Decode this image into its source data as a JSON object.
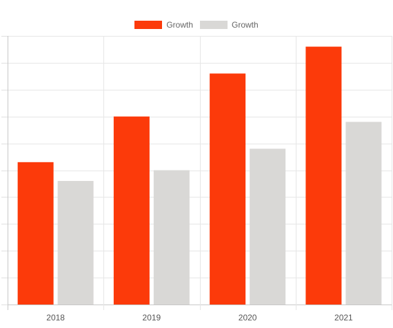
{
  "chart_data": {
    "type": "bar",
    "title": "",
    "xlabel": "",
    "ylabel": "",
    "categories": [
      "2018",
      "2019",
      "2020",
      "2021"
    ],
    "series": [
      {
        "name": "Growth",
        "color": "#fc3a0a",
        "values": [
          5.3,
          7.0,
          8.6,
          9.6
        ]
      },
      {
        "name": "Growth",
        "color": "#d9d8d6",
        "values": [
          4.6,
          5.0,
          5.8,
          6.8
        ]
      }
    ],
    "ylim": [
      0,
      10
    ],
    "grid": true,
    "legend_position": "top"
  }
}
